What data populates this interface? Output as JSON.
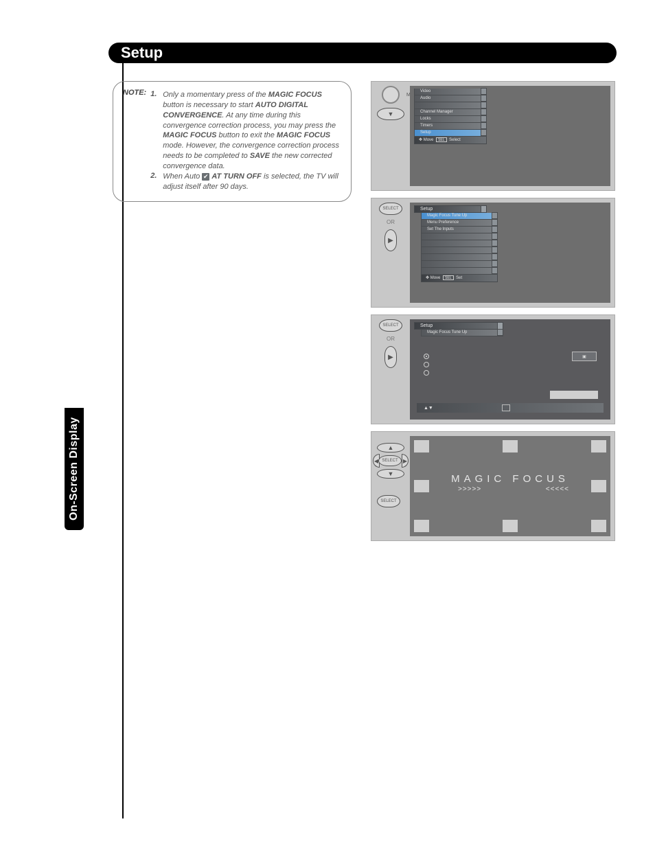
{
  "header": {
    "title": "Setup"
  },
  "side_tab": "On-Screen Display",
  "note": {
    "label": "NOTE:",
    "items": [
      {
        "num": "1.",
        "html": "Only a momentary press of the <b>MAGIC FOCUS</b> button is necessary to start <b>AUTO DIGITAL CONVERGENCE</b>. At any time during this convergence correction process, you may press the <b>MAGIC FOCUS</b> button to exit the <b>MAGIC FOCUS</b> mode. However, the convergence correction process needs to be completed to <b>SAVE</b> the new corrected convergence data."
      },
      {
        "num": "2.",
        "html": "When Auto <span class=\"check\">✔</span> <b>AT TURN OFF</b> is selected, the TV will adjust itself after 90 days."
      }
    ]
  },
  "panel1": {
    "button_label": "MENU",
    "menu_items": [
      "Video",
      "Audio",
      "",
      "Channel Manager",
      "Locks",
      "Timers",
      "Setup"
    ],
    "hint": {
      "move": "Move",
      "sel": "SEL",
      "select": "Select"
    }
  },
  "panel2": {
    "button_label": "SELECT",
    "or": "OR",
    "title": "Setup",
    "menu_items": [
      "Magic Focus Tune Up",
      "Menu Preference",
      "Set The Inputs",
      "",
      "",
      "",
      "",
      "",
      ""
    ],
    "hint": {
      "move": "Move",
      "sel": "SEL",
      "set": "Set"
    }
  },
  "panel3": {
    "button_label": "SELECT",
    "or": "OR",
    "title": "Setup",
    "sub": "Magic Focus Tune Up",
    "hint_arrows": "▲▼"
  },
  "panel4": {
    "button_label_top": "SELECT",
    "button_label_bottom": "SELECT",
    "title": "MAGIC FOCUS",
    "arrows_l": ">>>>>",
    "arrows_r": "<<<<<"
  }
}
